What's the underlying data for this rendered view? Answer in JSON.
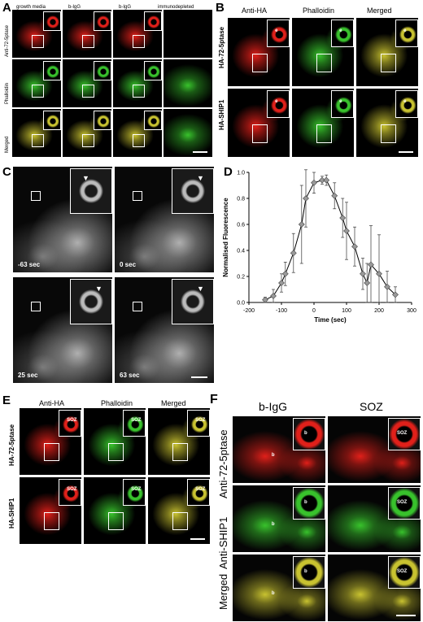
{
  "panelA": {
    "label": "A",
    "columns": [
      "growth media",
      "b-IgG",
      "b-IgG",
      "immunodepleted"
    ],
    "rows": [
      "Anti-72-5ptase",
      "Phalloidin",
      "Merged"
    ]
  },
  "panelB": {
    "label": "B",
    "columns": [
      "Anti-HA",
      "Phalloidin",
      "Merged"
    ],
    "rows": [
      "HA-72-5ptase",
      "HA-SHIP1"
    ],
    "inset_marker": "e"
  },
  "panelC": {
    "label": "C",
    "timestamps": [
      "-63 sec",
      "0 sec",
      "25 sec",
      "63 sec"
    ]
  },
  "panelD": {
    "label": "D"
  },
  "panelE": {
    "label": "E",
    "columns": [
      "Anti-HA",
      "Phalloidin",
      "Merged"
    ],
    "rows": [
      "HA-72-5ptase",
      "HA-SHIP1"
    ],
    "inset_marker": "SOZ"
  },
  "panelF": {
    "label": "F",
    "columns": [
      "b-IgG",
      "SOZ"
    ],
    "rows": [
      "Anti-72-5ptase",
      "Anti-SHIP1",
      "Merged"
    ],
    "marker_b": "b",
    "marker_soz": "SOZ"
  },
  "colors": {
    "red": "#e0201a",
    "green": "#38c22c",
    "yellow": "#c8c230",
    "gray": "#9a9a9a",
    "marker": "#999999"
  },
  "chart_data": {
    "type": "line",
    "xlabel": "Time (sec)",
    "ylabel": "Normalised Fluorescence",
    "xlim": [
      -200,
      300
    ],
    "ylim": [
      0,
      1.0
    ],
    "xticks": [
      -200,
      -100,
      0,
      100,
      200,
      300
    ],
    "yticks": [
      0.0,
      0.2,
      0.4,
      0.6,
      0.8,
      1.0
    ],
    "x": [
      -150,
      -125,
      -100,
      -88,
      -63,
      -38,
      -25,
      0,
      25,
      38,
      63,
      88,
      100,
      125,
      150,
      163,
      175,
      200,
      225,
      250
    ],
    "y": [
      0.02,
      0.05,
      0.15,
      0.22,
      0.38,
      0.6,
      0.8,
      0.92,
      0.94,
      0.94,
      0.82,
      0.65,
      0.55,
      0.43,
      0.22,
      0.15,
      0.29,
      0.22,
      0.12,
      0.06
    ],
    "err": [
      0.02,
      0.05,
      0.07,
      0.09,
      0.15,
      0.3,
      0.22,
      0.08,
      0.03,
      0.04,
      0.1,
      0.15,
      0.22,
      0.15,
      0.12,
      0.15,
      0.3,
      0.3,
      0.12,
      0.06
    ],
    "grid": false
  }
}
